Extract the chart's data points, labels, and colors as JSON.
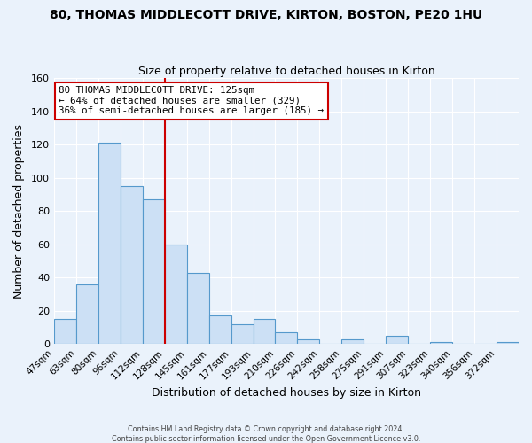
{
  "title": "80, THOMAS MIDDLECOTT DRIVE, KIRTON, BOSTON, PE20 1HU",
  "subtitle": "Size of property relative to detached houses in Kirton",
  "xlabel": "Distribution of detached houses by size in Kirton",
  "ylabel": "Number of detached properties",
  "bar_color": "#cce0f5",
  "bar_edge_color": "#5599cc",
  "background_color": "#eaf2fb",
  "grid_color": "#ffffff",
  "bin_labels": [
    "47sqm",
    "63sqm",
    "80sqm",
    "96sqm",
    "112sqm",
    "128sqm",
    "145sqm",
    "161sqm",
    "177sqm",
    "193sqm",
    "210sqm",
    "226sqm",
    "242sqm",
    "258sqm",
    "275sqm",
    "291sqm",
    "307sqm",
    "323sqm",
    "340sqm",
    "356sqm",
    "372sqm"
  ],
  "bar_heights": [
    15,
    36,
    121,
    95,
    87,
    60,
    43,
    17,
    12,
    15,
    7,
    3,
    0,
    3,
    0,
    5,
    0,
    1,
    0,
    0,
    1
  ],
  "ylim": [
    0,
    160
  ],
  "yticks": [
    0,
    20,
    40,
    60,
    80,
    100,
    120,
    140,
    160
  ],
  "vline_color": "#cc0000",
  "annotation_title": "80 THOMAS MIDDLECOTT DRIVE: 125sqm",
  "annotation_line1": "← 64% of detached houses are smaller (329)",
  "annotation_line2": "36% of semi-detached houses are larger (185) →",
  "annotation_box_color": "#ffffff",
  "annotation_box_edge": "#cc0000",
  "footer1": "Contains HM Land Registry data © Crown copyright and database right 2024.",
  "footer2": "Contains public sector information licensed under the Open Government Licence v3.0."
}
